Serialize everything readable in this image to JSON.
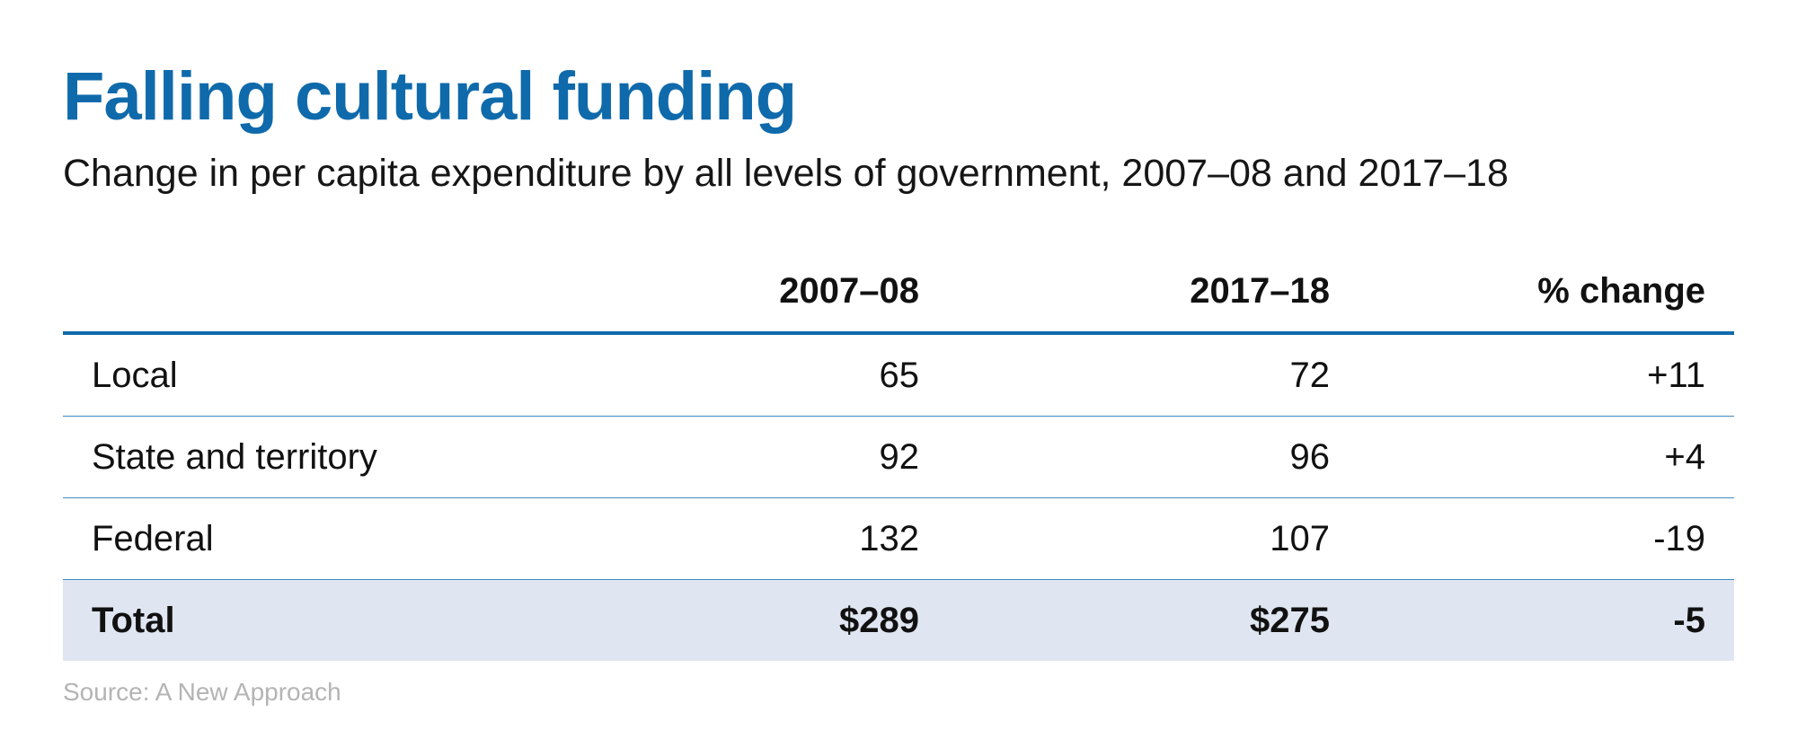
{
  "title": "Falling cultural funding",
  "subtitle": "Change in per capita expenditure by all levels of government, 2007–08 and 2017–18",
  "source": "Source: A New Approach",
  "colors": {
    "title": "#0f6aab",
    "header_rule": "#0f6aab",
    "row_divider": "#3f8ac2",
    "total_background": "#e0e6f1",
    "source_text": "#b4b4b4"
  },
  "chart_data": {
    "type": "table",
    "title": "Falling cultural funding",
    "subtitle": "Change in per capita expenditure by all levels of government, 2007–08 and 2017–18",
    "columns": [
      "",
      "2007–08",
      "2017–18",
      "% change"
    ],
    "rows": [
      {
        "label": "Local",
        "cells": [
          "65",
          "72",
          "+11"
        ]
      },
      {
        "label": "State and territory",
        "cells": [
          "92",
          "96",
          "+4"
        ]
      },
      {
        "label": "Federal",
        "cells": [
          "132",
          "107",
          "-19"
        ]
      }
    ],
    "total": {
      "label": "Total",
      "cells": [
        "$289",
        "$275",
        "-5"
      ]
    },
    "values": {
      "2007–08": {
        "Local": 65,
        "State and territory": 92,
        "Federal": 132,
        "Total": 289
      },
      "2017–18": {
        "Local": 72,
        "State and territory": 96,
        "Federal": 107,
        "Total": 275
      },
      "% change": {
        "Local": 11,
        "State and territory": 4,
        "Federal": -19,
        "Total": -5
      }
    },
    "units": "$ per capita",
    "source": "Source: A New Approach"
  }
}
